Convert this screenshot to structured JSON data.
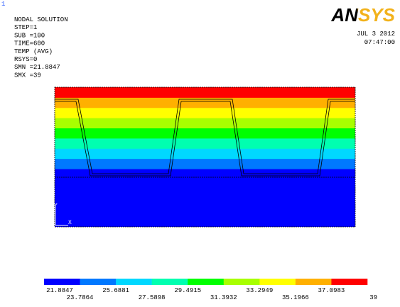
{
  "header": {
    "window_number": "1",
    "lines": [
      "NODAL SOLUTION",
      "STEP=1",
      "SUB =100",
      "TIME=600",
      "TEMP      (AVG)",
      "RSYS=0",
      "SMN =21.8847",
      "SMX =39"
    ],
    "logo": "ANSYS",
    "date": "JUL  3 2012",
    "time": "07:47:00"
  },
  "triad": {
    "y": "Y",
    "x": "X"
  },
  "legend": {
    "values": [
      21.8847,
      23.7864,
      25.6881,
      27.5898,
      29.4915,
      31.3932,
      33.2949,
      35.1966,
      37.0983,
      39
    ],
    "colors": [
      "#0000ff",
      "#0078ff",
      "#00d8ff",
      "#00ffb0",
      "#00ff00",
      "#a8ff00",
      "#ffff00",
      "#ffb000",
      "#ff0000"
    ]
  }
}
